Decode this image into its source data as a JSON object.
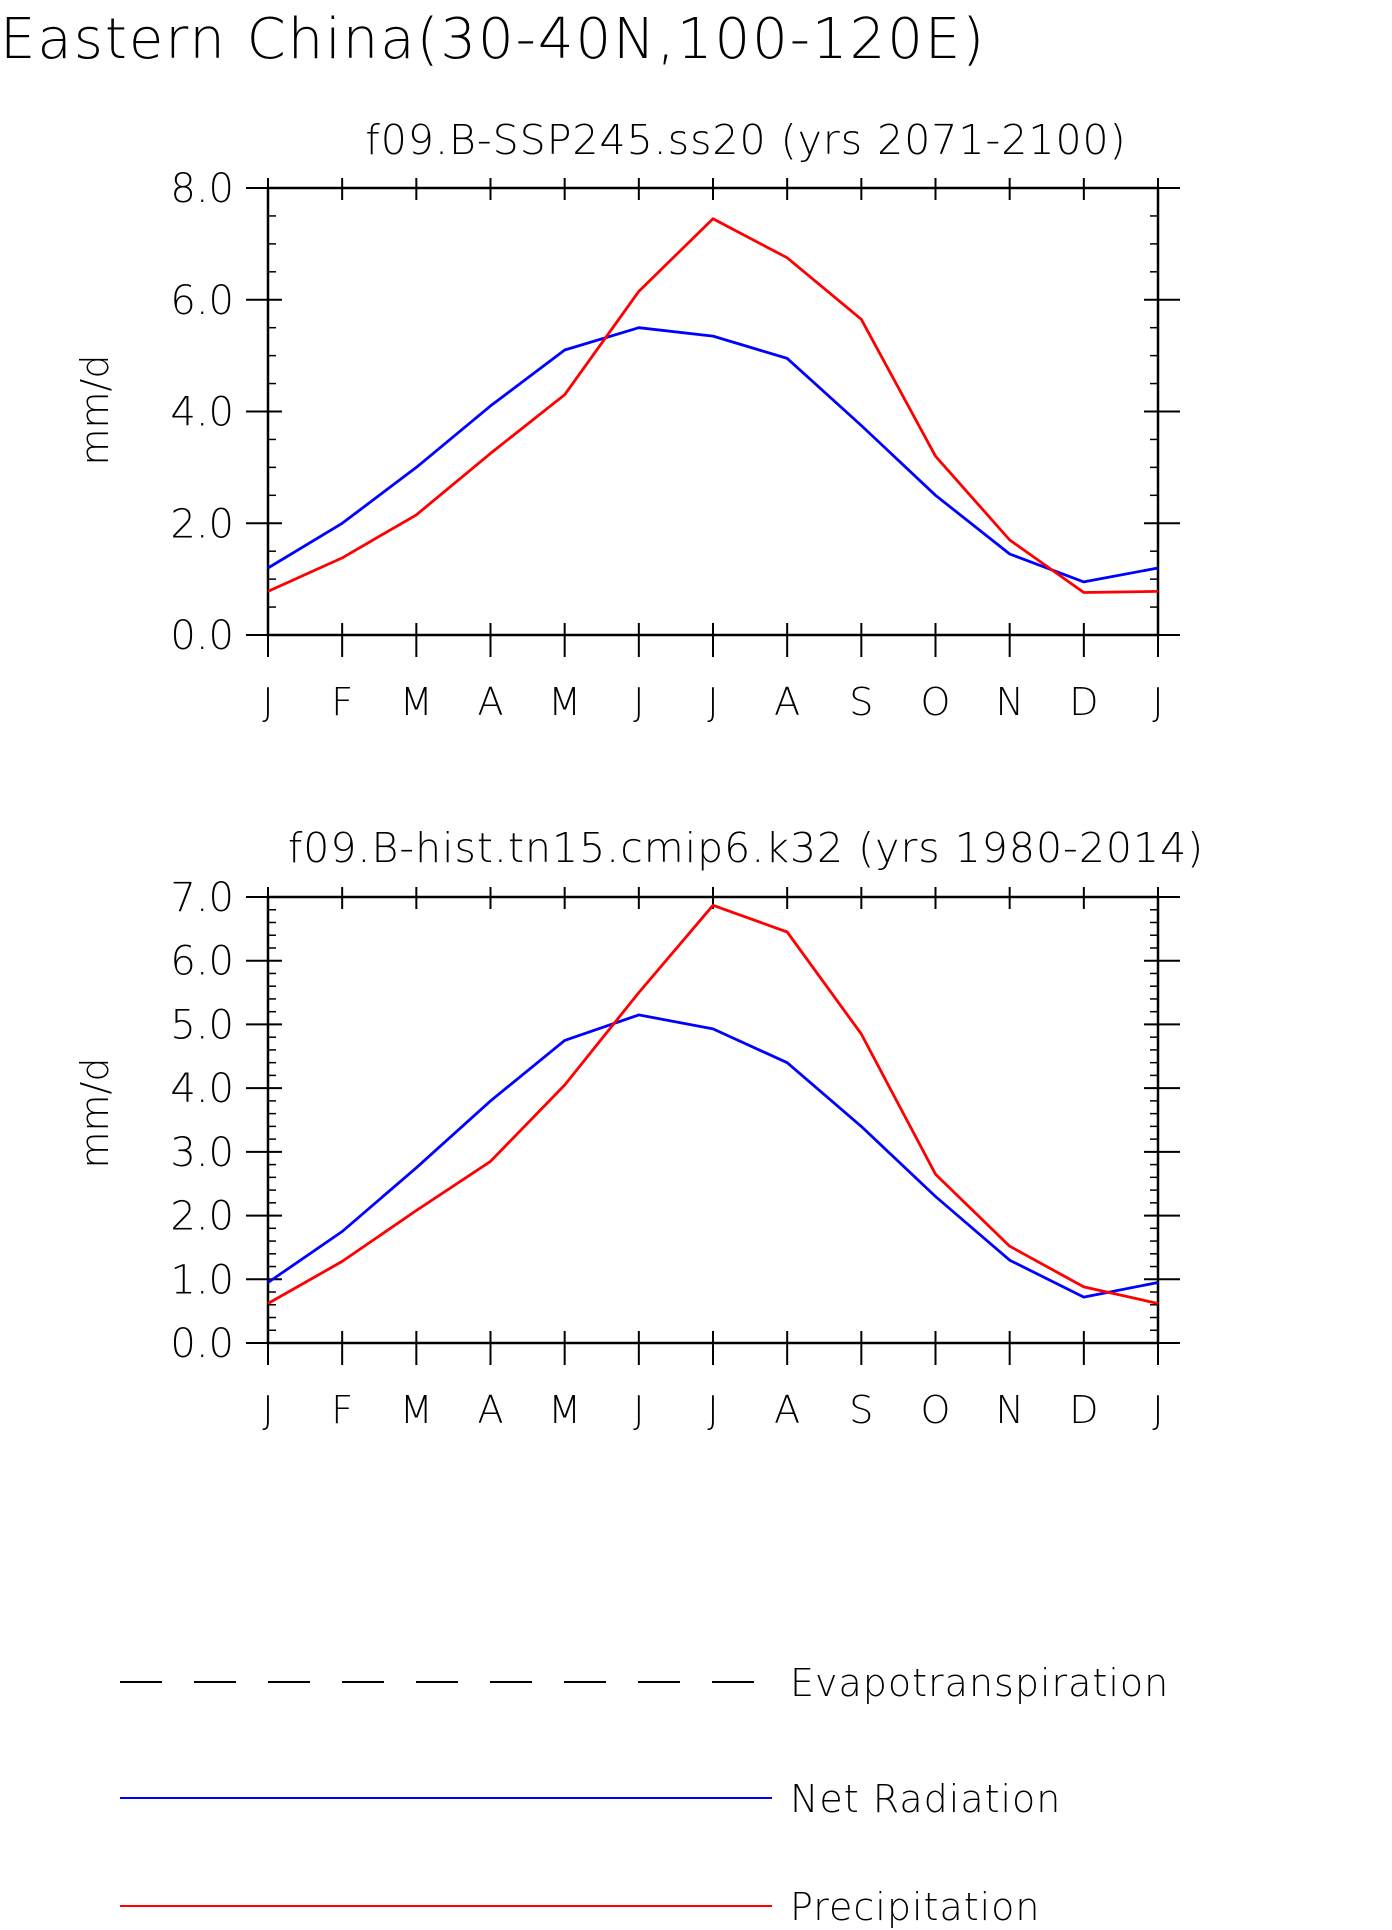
{
  "figure": {
    "title": "Eastern China(30-40N,100-120E)"
  },
  "months": [
    "J",
    "F",
    "M",
    "A",
    "M",
    "J",
    "J",
    "A",
    "S",
    "O",
    "N",
    "D",
    "J"
  ],
  "chart_data": [
    {
      "type": "line",
      "title": "f09.B-SSP245.ss20 (yrs 2071-2100)",
      "xlabel": "",
      "ylabel": "mm/d",
      "categories": [
        "J",
        "F",
        "M",
        "A",
        "M",
        "J",
        "J",
        "A",
        "S",
        "O",
        "N",
        "D",
        "J"
      ],
      "ylim": [
        0,
        8
      ],
      "yticks": [
        0,
        2,
        4,
        6,
        8
      ],
      "ytick_labels": [
        "0.0",
        "2.0",
        "4.0",
        "6.0",
        "8.0"
      ],
      "minor_step": 0.5,
      "series": [
        {
          "name": "Net Radiation",
          "color": "#0000ff",
          "values": [
            1.2,
            2.0,
            3.0,
            4.1,
            5.1,
            5.5,
            5.35,
            4.95,
            3.75,
            2.5,
            1.45,
            0.95,
            1.2
          ]
        },
        {
          "name": "Precipitation",
          "color": "#ff0000",
          "values": [
            0.78,
            1.38,
            2.15,
            3.25,
            4.3,
            6.15,
            7.45,
            6.75,
            5.65,
            3.2,
            1.7,
            0.76,
            0.78
          ]
        }
      ]
    },
    {
      "type": "line",
      "title": "f09.B-hist.tn15.cmip6.k32 (yrs 1980-2014)",
      "xlabel": "",
      "ylabel": "mm/d",
      "categories": [
        "J",
        "F",
        "M",
        "A",
        "M",
        "J",
        "J",
        "A",
        "S",
        "O",
        "N",
        "D",
        "J"
      ],
      "ylim": [
        0,
        7
      ],
      "yticks": [
        0,
        1,
        2,
        3,
        4,
        5,
        6,
        7
      ],
      "ytick_labels": [
        "0.0",
        "1.0",
        "2.0",
        "3.0",
        "4.0",
        "5.0",
        "6.0",
        "7.0"
      ],
      "minor_step": 0.2,
      "series": [
        {
          "name": "Net Radiation",
          "color": "#0000ff",
          "values": [
            0.95,
            1.75,
            2.75,
            3.8,
            4.75,
            5.15,
            4.93,
            4.4,
            3.4,
            2.3,
            1.3,
            0.72,
            0.95
          ]
        },
        {
          "name": "Precipitation",
          "color": "#ff0000",
          "values": [
            0.62,
            1.28,
            2.08,
            2.85,
            4.05,
            5.5,
            6.87,
            6.45,
            4.85,
            2.65,
            1.52,
            0.88,
            0.62
          ]
        }
      ]
    }
  ],
  "legend": [
    {
      "label": "Evapotranspiration",
      "color": "#000000",
      "style": "dashed"
    },
    {
      "label": "Net Radiation",
      "color": "#0000ff",
      "style": "solid"
    },
    {
      "label": "Precipitation",
      "color": "#ff0000",
      "style": "solid"
    }
  ]
}
